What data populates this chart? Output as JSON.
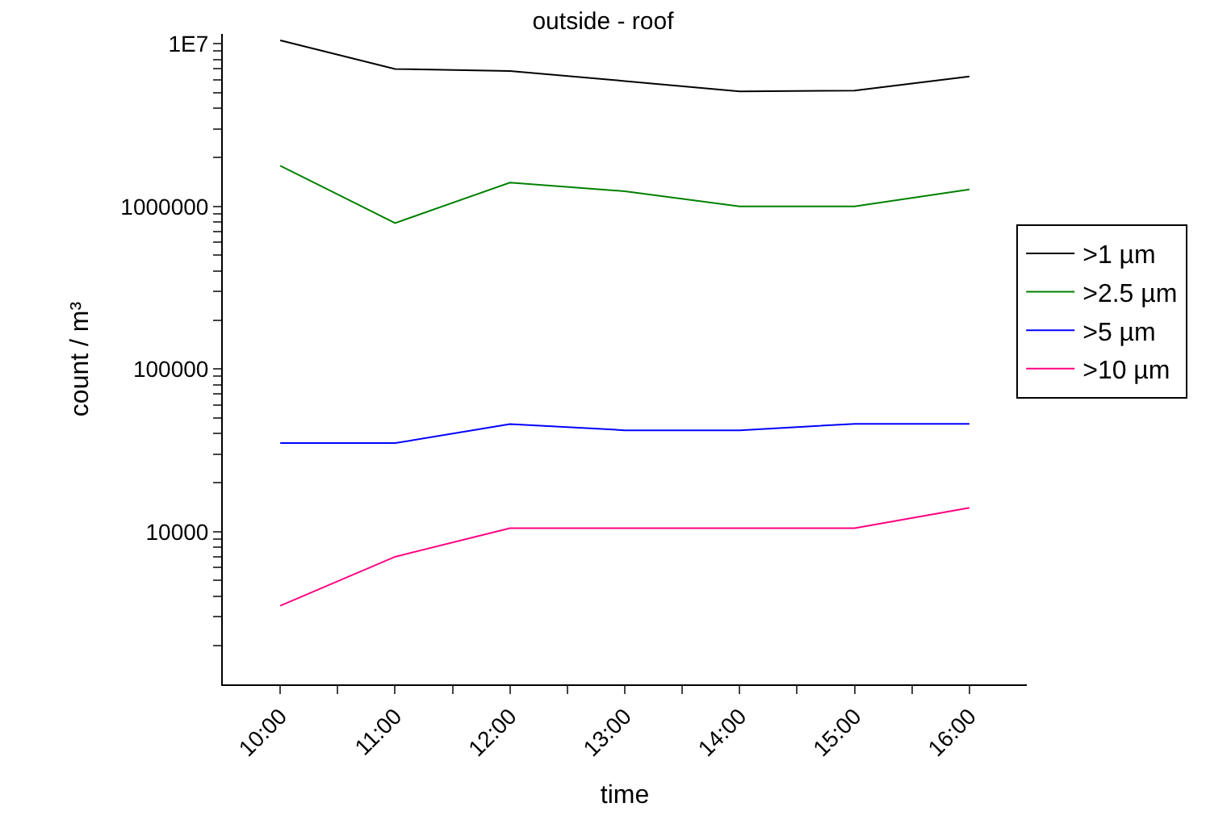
{
  "chart_data": {
    "type": "line",
    "title": "outside - roof",
    "xlabel": "time",
    "ylabel": "count / m³",
    "x": [
      10,
      11,
      12,
      13,
      14,
      15,
      16
    ],
    "series": [
      {
        "name": ">1 µm",
        "color": "#000000",
        "values": [
          10500000,
          7000000,
          6800000,
          5900000,
          5100000,
          5150000,
          6300000
        ]
      },
      {
        "name": ">2.5 µm",
        "color": "#008000",
        "values": [
          1780000,
          790000,
          1400000,
          1240000,
          1000000,
          1000000,
          1270000
        ]
      },
      {
        "name": ">5 µm",
        "color": "#0000ff",
        "values": [
          35000,
          35000,
          45800,
          42000,
          42000,
          46000,
          46000
        ]
      },
      {
        "name": ">10 µm",
        "color": "#ff0080",
        "values": [
          3500,
          7000,
          10500,
          10500,
          10500,
          10500,
          14000
        ]
      }
    ],
    "log": "y",
    "xlim": [
      9.5,
      16.5
    ],
    "ylim": [
      1150,
      11500000
    ],
    "xticks": [
      {
        "value": 10,
        "label": "10:00"
      },
      {
        "value": 10.5,
        "label": null
      },
      {
        "value": 11,
        "label": "11:00"
      },
      {
        "value": 11.5,
        "label": null
      },
      {
        "value": 12,
        "label": "12:00"
      },
      {
        "value": 12.5,
        "label": null
      },
      {
        "value": 13,
        "label": "13:00"
      },
      {
        "value": 13.5,
        "label": null
      },
      {
        "value": 14,
        "label": "14:00"
      },
      {
        "value": 14.5,
        "label": null
      },
      {
        "value": 15,
        "label": "15:00"
      },
      {
        "value": 15.5,
        "label": null
      },
      {
        "value": 16,
        "label": "16:00"
      }
    ],
    "yticks": [
      {
        "value": 2000,
        "label": null
      },
      {
        "value": 3000,
        "label": null
      },
      {
        "value": 4000,
        "label": null
      },
      {
        "value": 5000,
        "label": null
      },
      {
        "value": 6000,
        "label": null
      },
      {
        "value": 7000,
        "label": null
      },
      {
        "value": 8000,
        "label": null
      },
      {
        "value": 9000,
        "label": null
      },
      10000,
      {
        "value": 20000,
        "label": null
      },
      {
        "value": 30000,
        "label": null
      },
      {
        "value": 40000,
        "label": null
      },
      {
        "value": 50000,
        "label": null
      },
      {
        "value": 60000,
        "label": null
      },
      {
        "value": 70000,
        "label": null
      },
      {
        "value": 80000,
        "label": null
      },
      {
        "value": 90000,
        "label": null
      },
      100000,
      {
        "value": 200000,
        "label": null
      },
      {
        "value": 300000,
        "label": null
      },
      {
        "value": 400000,
        "label": null
      },
      {
        "value": 500000,
        "label": null
      },
      {
        "value": 600000,
        "label": null
      },
      {
        "value": 700000,
        "label": null
      },
      {
        "value": 800000,
        "label": null
      },
      {
        "value": 900000,
        "label": null
      },
      1000000,
      {
        "value": 2000000,
        "label": null
      },
      {
        "value": 3000000,
        "label": null
      },
      {
        "value": 4000000,
        "label": null
      },
      {
        "value": 5000000,
        "label": null
      },
      {
        "value": 6000000,
        "label": null
      },
      {
        "value": 7000000,
        "label": null
      },
      {
        "value": 8000000,
        "label": null
      },
      {
        "value": 9000000,
        "label": null
      },
      {
        "value": 10000000,
        "label": "1E7"
      }
    ],
    "legend": "right",
    "marker": "none",
    "line_style": "solid"
  }
}
